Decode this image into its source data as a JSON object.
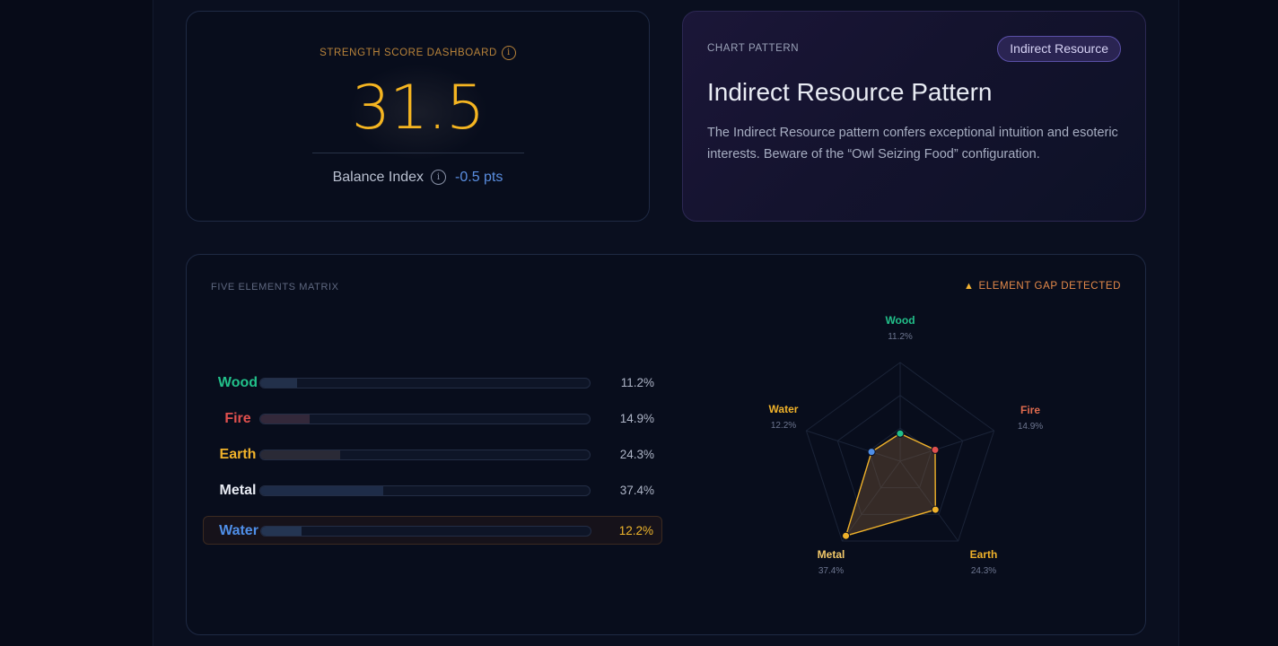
{
  "score": {
    "label": "STRENGTH SCORE DASHBOARD",
    "info_glyph": "i",
    "value": "31.5",
    "balance_label": "Balance Index",
    "balance_value": "-0.5 pts"
  },
  "pattern": {
    "kicker": "CHART PATTERN",
    "badge": "Indirect Resource",
    "title": "Indirect Resource Pattern",
    "description": "The Indirect Resource pattern confers exceptional intuition and esoteric interests. Beware of the “Owl Seizing Food” configuration."
  },
  "matrix": {
    "title": "FIVE ELEMENTS MATRIX",
    "alert": "ELEMENT GAP DETECTED",
    "alert_icon": "warning-icon",
    "active_element": "Water",
    "elements": [
      {
        "name": "Wood",
        "pct_text": "11.2%",
        "value": 11.2,
        "color": "#22c08a",
        "fill": "#22304a"
      },
      {
        "name": "Fire",
        "pct_text": "14.9%",
        "value": 14.9,
        "color": "#e0504e",
        "fill": "#33283a"
      },
      {
        "name": "Earth",
        "pct_text": "24.3%",
        "value": 24.3,
        "color": "#f0b22a",
        "fill": "#2a2a36"
      },
      {
        "name": "Metal",
        "pct_text": "37.4%",
        "value": 37.4,
        "color": "#e8ebf3",
        "fill": "#1e2c48"
      },
      {
        "name": "Water",
        "pct_text": "12.2%",
        "value": 12.2,
        "color": "#4f8fe8",
        "fill": "#243552"
      }
    ]
  },
  "radar": {
    "order": [
      "Wood",
      "Fire",
      "Earth",
      "Metal",
      "Water"
    ],
    "label_colors": {
      "Wood": "#22c08a",
      "Fire": "#e06b4e",
      "Earth": "#f0b22a",
      "Metal": "#f2c96a",
      "Water": "#f0b22a"
    },
    "polygon_color": "#f0b22a"
  }
}
